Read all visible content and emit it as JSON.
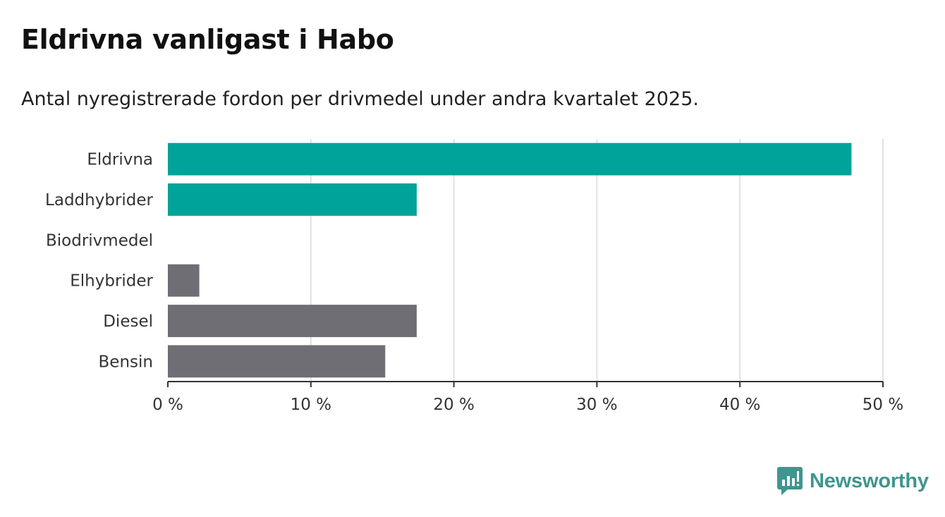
{
  "header": {
    "title": "Eldrivna vanligast i Habo",
    "subtitle": "Antal nyregistrerade fordon per drivmedel under andra kvartalet 2025."
  },
  "brand": {
    "name": "Newsworthy",
    "icon": "newsworthy-logo-icon",
    "color": "#3f958f"
  },
  "colors": {
    "highlight": "#00a39a",
    "other": "#6f6e74"
  },
  "chart_data": {
    "type": "bar",
    "orientation": "horizontal",
    "categories": [
      "Eldrivna",
      "Laddhybrider",
      "Biodrivmedel",
      "Elhybrider",
      "Diesel",
      "Bensin"
    ],
    "values": [
      47.8,
      17.4,
      0,
      2.2,
      17.4,
      15.2
    ],
    "highlighted": [
      true,
      true,
      false,
      false,
      false,
      false
    ],
    "xlim": [
      0,
      50
    ],
    "xticks": [
      0,
      10,
      20,
      30,
      40,
      50
    ],
    "xtick_labels": [
      "0 %",
      "10 %",
      "20 %",
      "30 %",
      "40 %",
      "50 %"
    ],
    "grid": "vertical",
    "legend": "none"
  }
}
